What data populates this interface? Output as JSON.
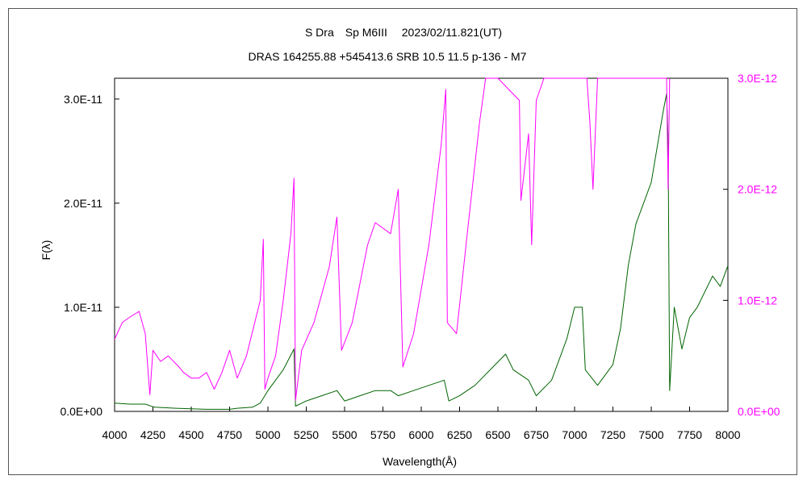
{
  "chart_data": {
    "type": "line",
    "title": "S Dra　Sp M6III　 2023/02/11.821(UT)",
    "subtitle": "DRAS 164255.88 +545413.6 SRB 10.5 11.5 p-136 - M7",
    "xlabel": "Wavelength(Å)",
    "ylabel": "F(λ)",
    "xlim": [
      4000,
      8000
    ],
    "ylim_left": [
      0,
      3.2e-11
    ],
    "ylim_right": [
      0,
      3e-12
    ],
    "x_ticks": [
      "4000",
      "4250",
      "4500",
      "4750",
      "5000",
      "5250",
      "5500",
      "5750",
      "6000",
      "6250",
      "6500",
      "6750",
      "7000",
      "7250",
      "7500",
      "7750",
      "8000"
    ],
    "y_ticks_left": [
      "0.0E+00",
      "1.0E-11",
      "2.0E-11",
      "3.0E-11"
    ],
    "y_ticks_right": [
      "0.0E+00",
      "1.0E-12",
      "2.0E-12",
      "3.0E-12"
    ],
    "grid": false,
    "series": [
      {
        "axis": "left",
        "color": "#006400",
        "points": [
          [
            4000,
            8e-13
          ],
          [
            4100,
            7e-13
          ],
          [
            4200,
            7e-13
          ],
          [
            4260,
            4e-13
          ],
          [
            4400,
            3e-13
          ],
          [
            4600,
            2e-13
          ],
          [
            4750,
            2e-13
          ],
          [
            4800,
            3e-13
          ],
          [
            4900,
            4e-13
          ],
          [
            4950,
            8e-13
          ],
          [
            5000,
            2e-12
          ],
          [
            5100,
            4e-12
          ],
          [
            5170,
            6e-12
          ],
          [
            5180,
            5e-13
          ],
          [
            5250,
            1e-12
          ],
          [
            5350,
            1.5e-12
          ],
          [
            5450,
            2e-12
          ],
          [
            5500,
            1e-12
          ],
          [
            5600,
            1.5e-12
          ],
          [
            5700,
            2e-12
          ],
          [
            5800,
            2e-12
          ],
          [
            5850,
            1.5e-12
          ],
          [
            5950,
            2e-12
          ],
          [
            6050,
            2.5e-12
          ],
          [
            6150,
            3e-12
          ],
          [
            6180,
            1e-12
          ],
          [
            6250,
            1.5e-12
          ],
          [
            6350,
            2.5e-12
          ],
          [
            6450,
            4e-12
          ],
          [
            6550,
            5.5e-12
          ],
          [
            6600,
            4e-12
          ],
          [
            6700,
            3e-12
          ],
          [
            6750,
            1.5e-12
          ],
          [
            6850,
            3e-12
          ],
          [
            6950,
            7e-12
          ],
          [
            7000,
            1e-11
          ],
          [
            7050,
            1e-11
          ],
          [
            7070,
            4e-12
          ],
          [
            7150,
            2.5e-12
          ],
          [
            7250,
            4.5e-12
          ],
          [
            7300,
            8e-12
          ],
          [
            7350,
            1.4e-11
          ],
          [
            7400,
            1.8e-11
          ],
          [
            7500,
            2.2e-11
          ],
          [
            7580,
            2.9e-11
          ],
          [
            7600,
            3.05e-11
          ],
          [
            7610,
            2.6e-11
          ],
          [
            7620,
            2e-12
          ],
          [
            7650,
            1e-11
          ],
          [
            7700,
            6e-12
          ],
          [
            7750,
            9e-12
          ],
          [
            7800,
            1e-11
          ],
          [
            7900,
            1.3e-11
          ],
          [
            7950,
            1.2e-11
          ],
          [
            8000,
            1.4e-11
          ]
        ]
      },
      {
        "axis": "right",
        "color": "#ff00ff",
        "points": [
          [
            4000,
            6.5e-13
          ],
          [
            4050,
            8e-13
          ],
          [
            4100,
            8.5e-13
          ],
          [
            4160,
            9e-13
          ],
          [
            4200,
            7e-13
          ],
          [
            4230,
            1.5e-13
          ],
          [
            4250,
            5.5e-13
          ],
          [
            4300,
            4.5e-13
          ],
          [
            4350,
            5e-13
          ],
          [
            4420,
            4e-13
          ],
          [
            4450,
            3.5e-13
          ],
          [
            4500,
            3e-13
          ],
          [
            4550,
            3e-13
          ],
          [
            4600,
            3.5e-13
          ],
          [
            4650,
            2e-13
          ],
          [
            4700,
            3.5e-13
          ],
          [
            4750,
            5.5e-13
          ],
          [
            4800,
            3e-13
          ],
          [
            4860,
            5e-13
          ],
          [
            4950,
            1e-12
          ],
          [
            4970,
            1.55e-12
          ],
          [
            4980,
            2e-13
          ],
          [
            5000,
            3e-13
          ],
          [
            5050,
            5e-13
          ],
          [
            5100,
            1e-12
          ],
          [
            5150,
            1.6e-12
          ],
          [
            5170,
            2.1e-12
          ],
          [
            5180,
            1e-13
          ],
          [
            5220,
            5.5e-13
          ],
          [
            5300,
            8e-13
          ],
          [
            5400,
            1.3e-12
          ],
          [
            5450,
            1.75e-12
          ],
          [
            5480,
            5.5e-13
          ],
          [
            5550,
            8e-13
          ],
          [
            5650,
            1.5e-12
          ],
          [
            5700,
            1.7e-12
          ],
          [
            5800,
            1.6e-12
          ],
          [
            5850,
            2e-12
          ],
          [
            5880,
            4e-13
          ],
          [
            5950,
            7e-13
          ],
          [
            6050,
            1.5e-12
          ],
          [
            6130,
            2.4e-12
          ],
          [
            6160,
            2.9e-12
          ],
          [
            6170,
            8e-13
          ],
          [
            6230,
            7e-13
          ],
          [
            6300,
            1.6e-12
          ],
          [
            6380,
            2.6e-12
          ],
          [
            6420,
            3e-12
          ],
          [
            6500,
            3e-12
          ],
          [
            6640,
            2.8e-12
          ],
          [
            6650,
            1.9e-12
          ],
          [
            6700,
            2.5e-12
          ],
          [
            6720,
            1.5e-12
          ],
          [
            6750,
            2.8e-12
          ],
          [
            6800,
            3e-12
          ],
          [
            6900,
            3e-12
          ],
          [
            7080,
            3e-12
          ],
          [
            7100,
            2.6e-12
          ],
          [
            7120,
            2e-12
          ],
          [
            7150,
            3e-12
          ],
          [
            7550,
            3e-12
          ],
          [
            7600,
            3e-12
          ],
          [
            7610,
            2e-12
          ],
          [
            7620,
            3e-12
          ]
        ]
      }
    ]
  }
}
